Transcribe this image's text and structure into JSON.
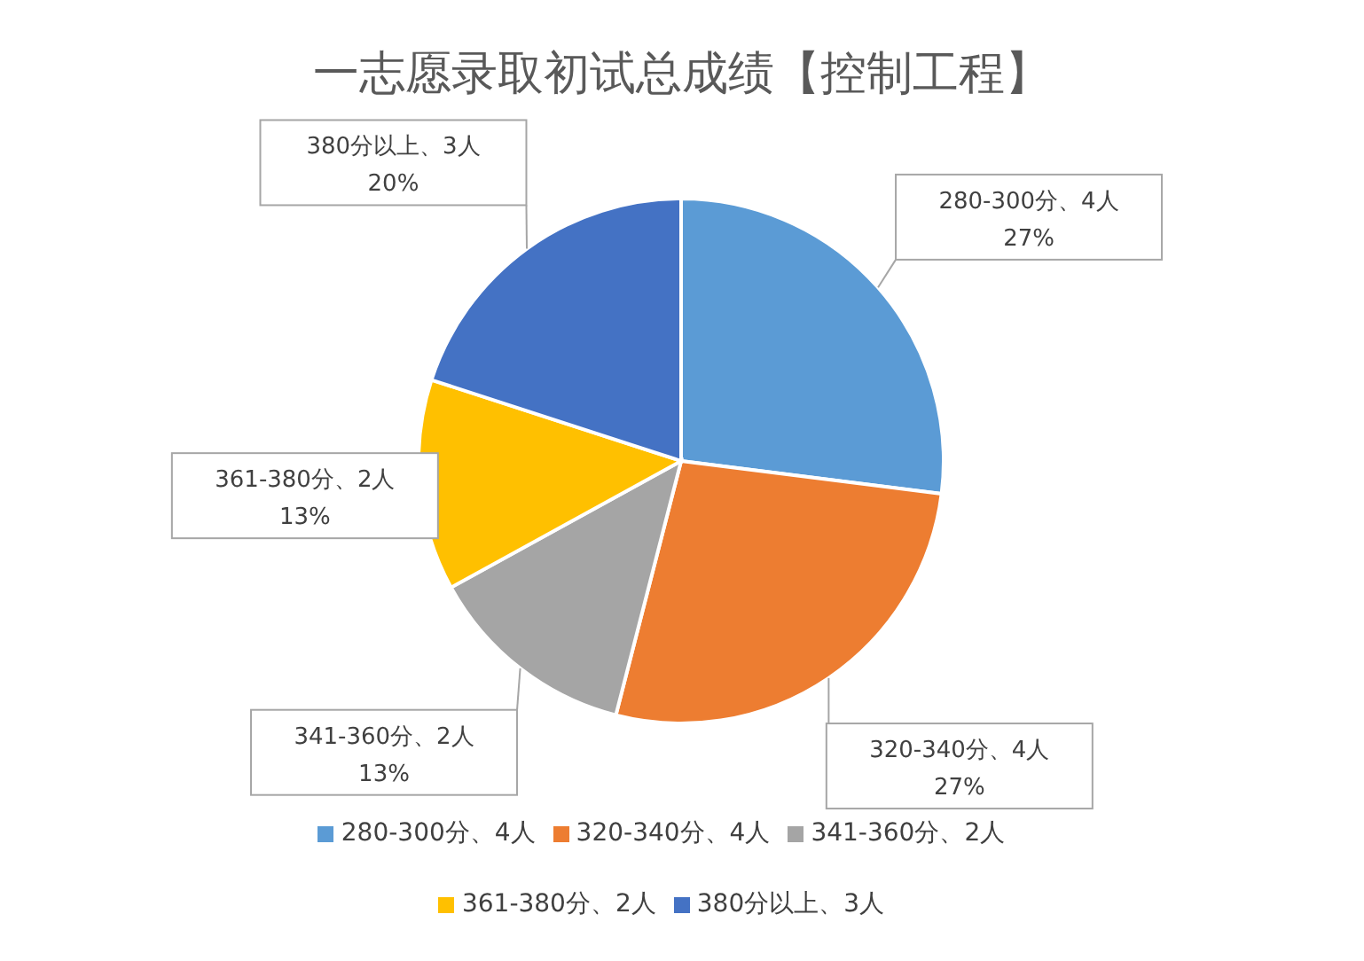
{
  "chart_data": {
    "type": "pie",
    "title": "一志愿录取初试总成绩【控制工程】",
    "categories": [
      "280-300分、4人",
      "320-340分、4人",
      "341-360分、2人",
      "361-380分、2人",
      "380分以上、3人"
    ],
    "values": [
      27,
      27,
      13,
      13,
      20
    ],
    "value_labels": [
      "27%",
      "27%",
      "13%",
      "13%",
      "20%"
    ],
    "colors": [
      "#5b9bd5",
      "#ed7d31",
      "#a5a5a5",
      "#ffc000",
      "#4472c4"
    ],
    "legend": "bottom"
  }
}
